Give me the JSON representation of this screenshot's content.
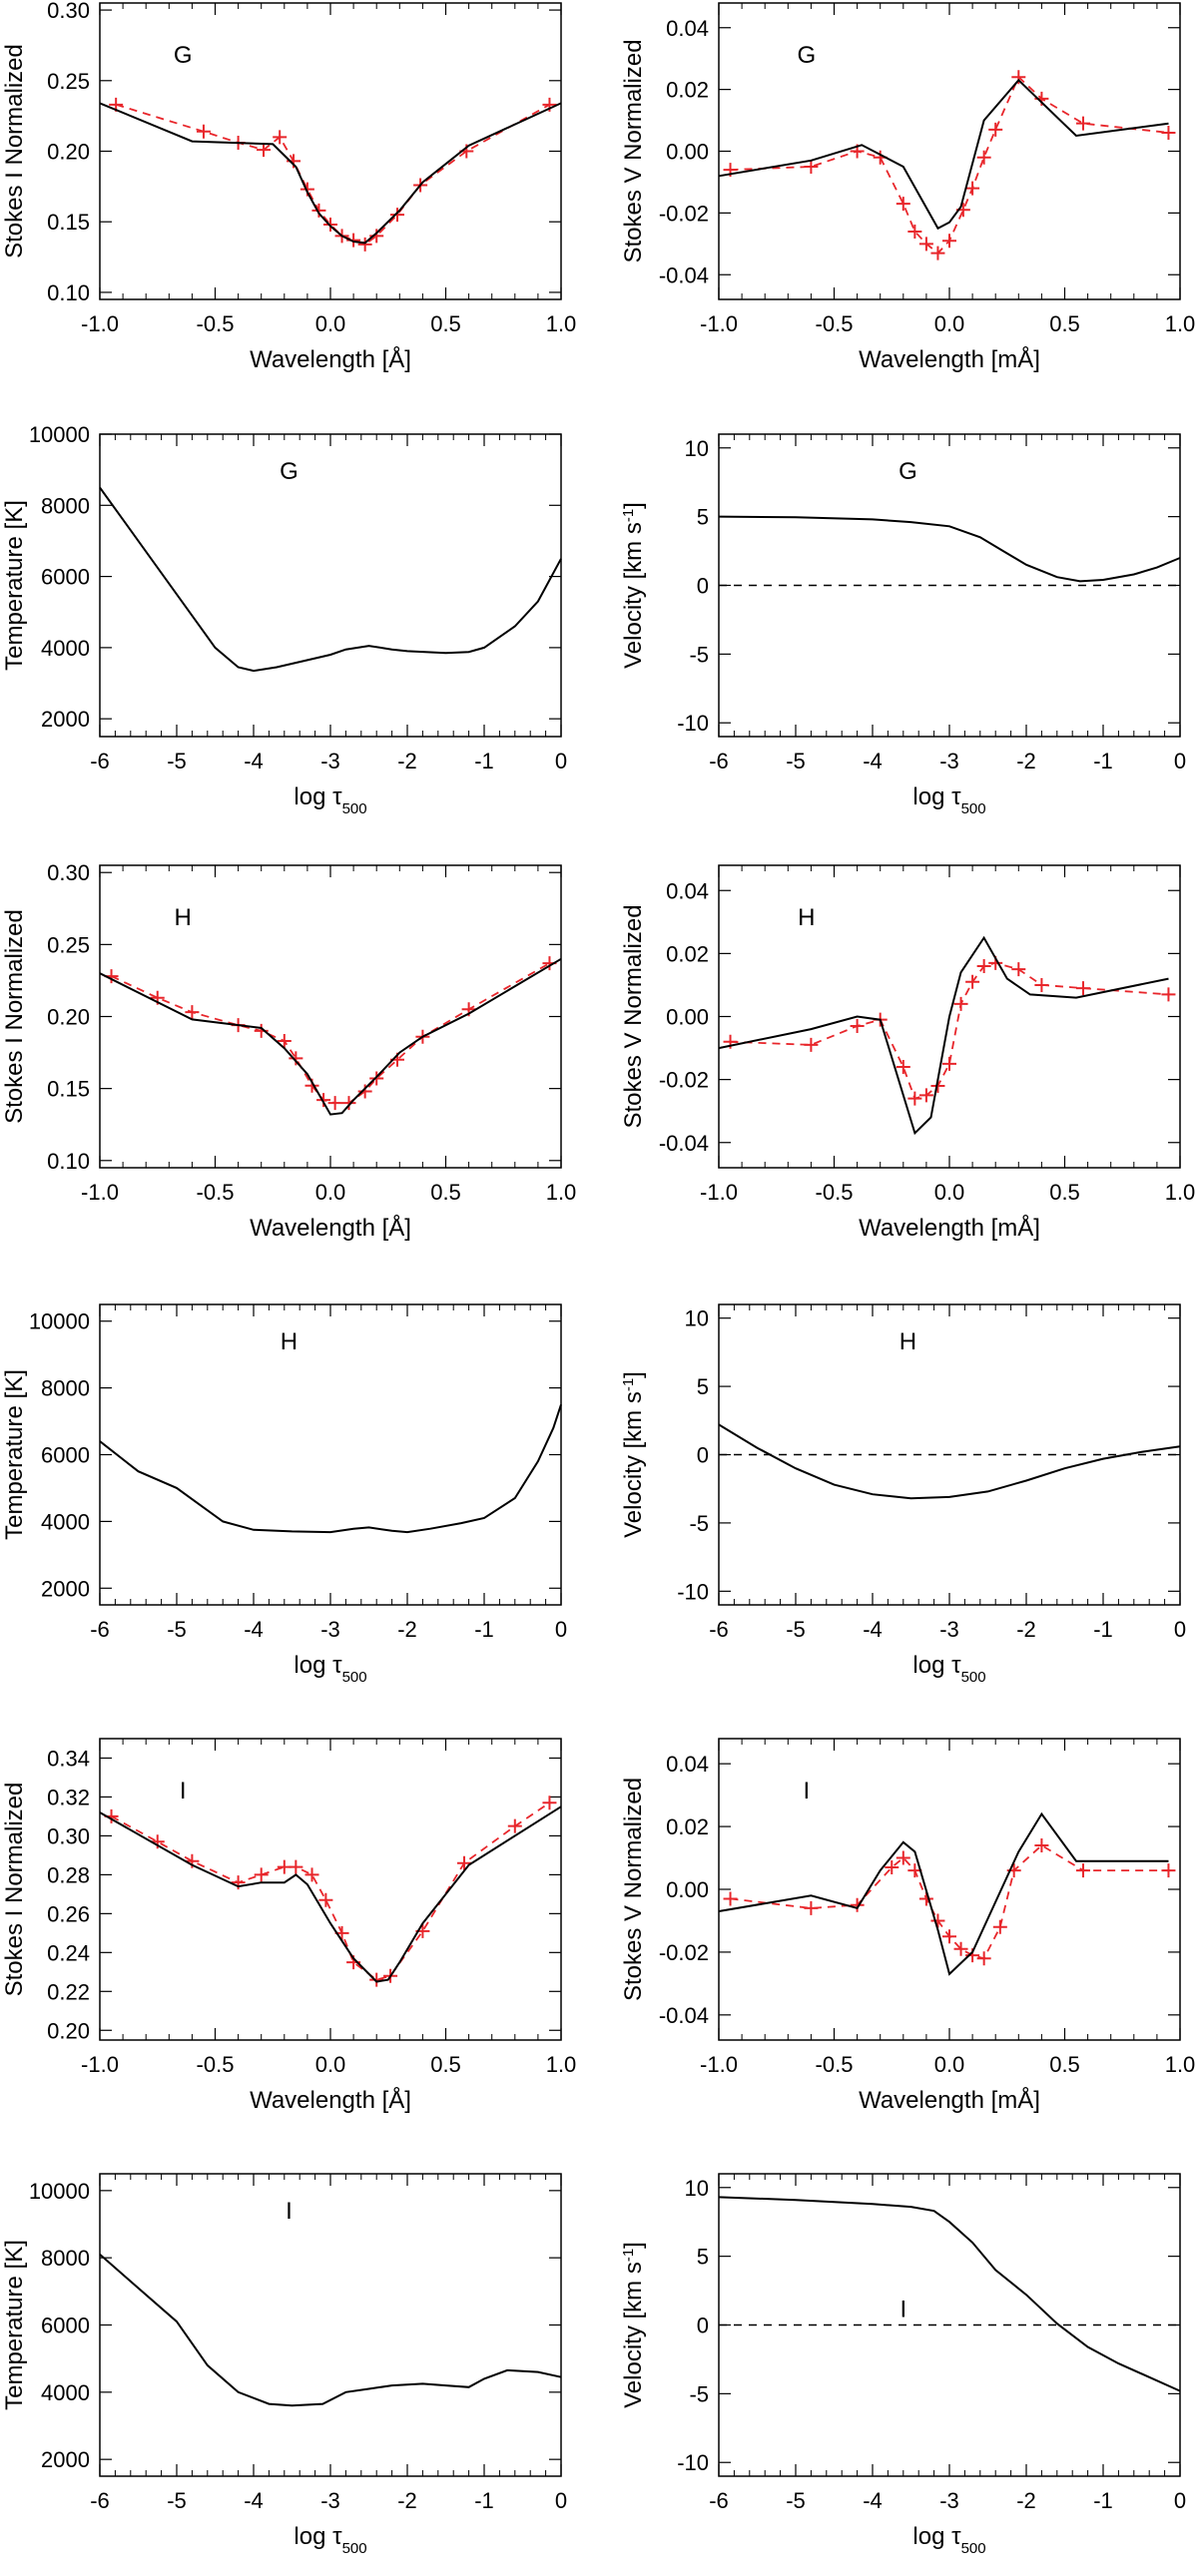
{
  "figure": {
    "colors": {
      "observed": "#e8262b",
      "fit": "#000000"
    }
  },
  "chart_data": [
    {
      "type": "line",
      "kind": "stokesI",
      "panel_label": "G",
      "xlabel": "Wavelength [Å]",
      "ylabel": "Stokes I  Normalized",
      "xlim": [
        -1,
        1
      ],
      "ylim": [
        0.095,
        0.305
      ],
      "xticks": [
        "-1.0",
        "-0.5",
        "0.0",
        "0.5",
        "1.0"
      ],
      "yticks": [
        "0.10",
        "0.15",
        "0.20",
        "0.25",
        "0.30"
      ],
      "series": [
        {
          "name": "observed",
          "style": "dashed-plus",
          "x": [
            -0.93,
            -0.55,
            -0.4,
            -0.29,
            -0.22,
            -0.16,
            -0.1,
            -0.05,
            0.0,
            0.05,
            0.1,
            0.15,
            0.2,
            0.29,
            0.39,
            0.59,
            0.95
          ],
          "y": [
            0.233,
            0.214,
            0.206,
            0.201,
            0.21,
            0.193,
            0.173,
            0.158,
            0.148,
            0.14,
            0.137,
            0.134,
            0.14,
            0.155,
            0.176,
            0.2,
            0.233
          ]
        },
        {
          "name": "fit",
          "style": "solid",
          "x": [
            -1.0,
            -0.6,
            -0.25,
            -0.15,
            -0.1,
            -0.05,
            0.0,
            0.05,
            0.1,
            0.15,
            0.2,
            0.3,
            0.4,
            0.6,
            1.0
          ],
          "y": [
            0.234,
            0.207,
            0.205,
            0.189,
            0.171,
            0.156,
            0.147,
            0.14,
            0.136,
            0.135,
            0.142,
            0.158,
            0.178,
            0.204,
            0.234
          ]
        }
      ]
    },
    {
      "type": "line",
      "kind": "stokesV",
      "panel_label": "G",
      "xlabel": "Wavelength [mÅ]",
      "ylabel": "Stokes V  Normalized",
      "xlim": [
        -1,
        1
      ],
      "ylim": [
        -0.048,
        0.048
      ],
      "xticks": [
        "-1.0",
        "-0.5",
        "0.0",
        "0.5",
        "1.0"
      ],
      "yticks": [
        "-0.04",
        "-0.02",
        "0.00",
        "0.02",
        "0.04"
      ],
      "series": [
        {
          "name": "observed",
          "style": "dashed-plus",
          "x": [
            -0.95,
            -0.6,
            -0.4,
            -0.3,
            -0.2,
            -0.15,
            -0.1,
            -0.05,
            0.0,
            0.06,
            0.1,
            0.15,
            0.2,
            0.3,
            0.4,
            0.58,
            0.95
          ],
          "y": [
            -0.006,
            -0.005,
            0.0,
            -0.002,
            -0.017,
            -0.026,
            -0.03,
            -0.033,
            -0.029,
            -0.019,
            -0.012,
            -0.002,
            0.007,
            0.024,
            0.017,
            0.009,
            0.006
          ]
        },
        {
          "name": "fit",
          "style": "solid",
          "x": [
            -1.0,
            -0.6,
            -0.38,
            -0.2,
            -0.05,
            0.0,
            0.05,
            0.15,
            0.3,
            0.55,
            0.95
          ],
          "y": [
            -0.008,
            -0.003,
            0.002,
            -0.005,
            -0.025,
            -0.023,
            -0.018,
            0.01,
            0.023,
            0.005,
            0.009
          ]
        }
      ]
    },
    {
      "type": "line",
      "kind": "temperature",
      "panel_label": "G",
      "xlabel": "log τ500",
      "ylabel": "Temperature [K]",
      "xlim": [
        -6,
        0
      ],
      "ylim": [
        1500,
        10000
      ],
      "xticks": [
        "-6",
        "-5",
        "-4",
        "-3",
        "-2",
        "-1",
        "0"
      ],
      "yticks": [
        "2000",
        "4000",
        "6000",
        "8000",
        "10000"
      ],
      "series": [
        {
          "name": "fit",
          "style": "solid",
          "x": [
            -6,
            -5.5,
            -5,
            -4.5,
            -4.2,
            -4,
            -3.7,
            -3.3,
            -3,
            -2.8,
            -2.5,
            -2.2,
            -2,
            -1.5,
            -1.2,
            -1,
            -0.6,
            -0.3,
            0
          ],
          "y": [
            8500,
            7000,
            5500,
            4000,
            3450,
            3350,
            3450,
            3650,
            3800,
            3950,
            4050,
            3950,
            3900,
            3850,
            3880,
            4000,
            4600,
            5300,
            6500
          ]
        }
      ]
    },
    {
      "type": "line",
      "kind": "velocity",
      "panel_label": "G",
      "xlabel": "log τ500",
      "ylabel": "Velocity [km s⁻¹]",
      "xlim": [
        -6,
        0
      ],
      "ylim": [
        -11,
        11
      ],
      "xticks": [
        "-6",
        "-5",
        "-4",
        "-3",
        "-2",
        "-1",
        "0"
      ],
      "yticks": [
        "-10",
        "-5",
        "0",
        "5",
        "10"
      ],
      "series": [
        {
          "name": "zero",
          "style": "dashed",
          "x": [
            -6,
            0
          ],
          "y": [
            0,
            0
          ]
        },
        {
          "name": "fit",
          "style": "solid",
          "x": [
            -6,
            -5,
            -4,
            -3.5,
            -3,
            -2.6,
            -2.3,
            -2,
            -1.6,
            -1.3,
            -1,
            -0.6,
            -0.3,
            0
          ],
          "y": [
            5,
            4.95,
            4.8,
            4.6,
            4.3,
            3.5,
            2.5,
            1.5,
            0.6,
            0.3,
            0.4,
            0.8,
            1.3,
            2.0
          ]
        }
      ]
    },
    {
      "type": "line",
      "kind": "stokesI",
      "panel_label": "H",
      "xlabel": "Wavelength [Å]",
      "ylabel": "Stokes I  Normalized",
      "xlim": [
        -1,
        1
      ],
      "ylim": [
        0.095,
        0.305
      ],
      "xticks": [
        "-1.0",
        "-0.5",
        "0.0",
        "0.5",
        "1.0"
      ],
      "yticks": [
        "0.10",
        "0.15",
        "0.20",
        "0.25",
        "0.30"
      ],
      "series": [
        {
          "name": "observed",
          "style": "dashed-plus",
          "x": [
            -0.95,
            -0.75,
            -0.6,
            -0.4,
            -0.3,
            -0.2,
            -0.15,
            -0.08,
            -0.03,
            0.02,
            0.08,
            0.15,
            0.2,
            0.29,
            0.4,
            0.6,
            0.95
          ],
          "y": [
            0.228,
            0.213,
            0.203,
            0.194,
            0.19,
            0.183,
            0.171,
            0.152,
            0.142,
            0.14,
            0.14,
            0.148,
            0.157,
            0.17,
            0.186,
            0.205,
            0.237
          ]
        },
        {
          "name": "fit",
          "style": "solid",
          "x": [
            -1.0,
            -0.6,
            -0.3,
            -0.2,
            -0.1,
            0.0,
            0.05,
            0.1,
            0.2,
            0.3,
            0.4,
            0.6,
            1.0
          ],
          "y": [
            0.23,
            0.198,
            0.192,
            0.178,
            0.16,
            0.132,
            0.133,
            0.142,
            0.158,
            0.175,
            0.186,
            0.202,
            0.24
          ]
        }
      ]
    },
    {
      "type": "line",
      "kind": "stokesV",
      "panel_label": "H",
      "xlabel": "Wavelength [mÅ]",
      "ylabel": "Stokes V  Normalized",
      "xlim": [
        -1,
        1
      ],
      "ylim": [
        -0.048,
        0.048
      ],
      "xticks": [
        "-1.0",
        "-0.5",
        "0.0",
        "0.5",
        "1.0"
      ],
      "yticks": [
        "-0.04",
        "-0.02",
        "0.00",
        "0.02",
        "0.04"
      ],
      "series": [
        {
          "name": "observed",
          "style": "dashed-plus",
          "x": [
            -0.95,
            -0.6,
            -0.4,
            -0.3,
            -0.2,
            -0.15,
            -0.1,
            -0.05,
            0.0,
            0.05,
            0.1,
            0.15,
            0.2,
            0.3,
            0.4,
            0.58,
            0.95
          ],
          "y": [
            -0.008,
            -0.009,
            -0.003,
            -0.001,
            -0.016,
            -0.026,
            -0.025,
            -0.022,
            -0.015,
            0.004,
            0.011,
            0.016,
            0.017,
            0.015,
            0.01,
            0.009,
            0.007
          ]
        },
        {
          "name": "fit",
          "style": "solid",
          "x": [
            -1.0,
            -0.6,
            -0.4,
            -0.3,
            -0.15,
            -0.08,
            0.0,
            0.05,
            0.15,
            0.25,
            0.35,
            0.55,
            0.95
          ],
          "y": [
            -0.01,
            -0.004,
            0.0,
            -0.001,
            -0.037,
            -0.032,
            0.0,
            0.014,
            0.025,
            0.012,
            0.007,
            0.006,
            0.012
          ]
        }
      ]
    },
    {
      "type": "line",
      "kind": "temperature",
      "panel_label": "H",
      "xlabel": "log τ500",
      "ylabel": "Temperature [K]",
      "xlim": [
        -6,
        0
      ],
      "ylim": [
        1500,
        10500
      ],
      "xticks": [
        "-6",
        "-5",
        "-4",
        "-3",
        "-2",
        "-1",
        "0"
      ],
      "yticks": [
        "2000",
        "4000",
        "6000",
        "8000",
        "10000"
      ],
      "series": [
        {
          "name": "fit",
          "style": "solid",
          "x": [
            -6,
            -5.5,
            -5,
            -4.7,
            -4.4,
            -4,
            -3.5,
            -3,
            -2.7,
            -2.5,
            -2.2,
            -2,
            -1.7,
            -1.3,
            -1,
            -0.6,
            -0.3,
            -0.1,
            0
          ],
          "y": [
            6400,
            5500,
            5000,
            4500,
            4000,
            3750,
            3700,
            3680,
            3780,
            3820,
            3720,
            3680,
            3780,
            3950,
            4100,
            4700,
            5800,
            6800,
            7500
          ]
        }
      ]
    },
    {
      "type": "line",
      "kind": "velocity",
      "panel_label": "H",
      "xlabel": "log τ500",
      "ylabel": "Velocity [km s⁻¹]",
      "xlim": [
        -6,
        0
      ],
      "ylim": [
        -11,
        11
      ],
      "xticks": [
        "-6",
        "-5",
        "-4",
        "-3",
        "-2",
        "-1",
        "0"
      ],
      "yticks": [
        "-10",
        "-5",
        "0",
        "5",
        "10"
      ],
      "series": [
        {
          "name": "zero",
          "style": "dashed",
          "x": [
            -6,
            0
          ],
          "y": [
            0,
            0
          ]
        },
        {
          "name": "fit",
          "style": "solid",
          "x": [
            -6,
            -5.5,
            -5,
            -4.5,
            -4,
            -3.5,
            -3,
            -2.5,
            -2,
            -1.5,
            -1,
            -0.5,
            0
          ],
          "y": [
            2.2,
            0.5,
            -1,
            -2.2,
            -2.9,
            -3.2,
            -3.1,
            -2.7,
            -1.9,
            -1,
            -0.3,
            0.2,
            0.6
          ]
        }
      ]
    },
    {
      "type": "line",
      "kind": "stokesI",
      "panel_label": "I",
      "xlabel": "Wavelength [Å]",
      "ylabel": "Stokes I  Normalized",
      "xlim": [
        -1,
        1
      ],
      "ylim": [
        0.195,
        0.35
      ],
      "xticks": [
        "-1.0",
        "-0.5",
        "0.0",
        "0.5",
        "1.0"
      ],
      "yticks": [
        "0.20",
        "0.22",
        "0.24",
        "0.26",
        "0.28",
        "0.30",
        "0.32",
        "0.34"
      ],
      "series": [
        {
          "name": "observed",
          "style": "dashed-plus",
          "x": [
            -0.95,
            -0.75,
            -0.6,
            -0.4,
            -0.3,
            -0.2,
            -0.15,
            -0.08,
            -0.02,
            0.05,
            0.1,
            0.2,
            0.26,
            0.4,
            0.58,
            0.8,
            0.95
          ],
          "y": [
            0.31,
            0.297,
            0.287,
            0.276,
            0.28,
            0.284,
            0.284,
            0.28,
            0.267,
            0.25,
            0.235,
            0.226,
            0.228,
            0.251,
            0.286,
            0.305,
            0.317
          ]
        },
        {
          "name": "fit",
          "style": "solid",
          "x": [
            -1.0,
            -0.6,
            -0.4,
            -0.3,
            -0.2,
            -0.15,
            -0.1,
            0.0,
            0.1,
            0.2,
            0.25,
            0.3,
            0.4,
            0.6,
            1.0
          ],
          "y": [
            0.312,
            0.285,
            0.274,
            0.276,
            0.276,
            0.28,
            0.275,
            0.255,
            0.237,
            0.225,
            0.226,
            0.235,
            0.255,
            0.285,
            0.315
          ]
        }
      ]
    },
    {
      "type": "line",
      "kind": "stokesV",
      "panel_label": "I",
      "xlabel": "Wavelength [mÅ]",
      "ylabel": "Stokes V  Normalized",
      "xlim": [
        -1,
        1
      ],
      "ylim": [
        -0.048,
        0.048
      ],
      "xticks": [
        "-1.0",
        "-0.5",
        "0.0",
        "0.5",
        "1.0"
      ],
      "yticks": [
        "-0.04",
        "-0.02",
        "0.00",
        "0.02",
        "0.04"
      ],
      "series": [
        {
          "name": "observed",
          "style": "dashed-plus",
          "x": [
            -0.95,
            -0.6,
            -0.4,
            -0.25,
            -0.2,
            -0.15,
            -0.1,
            -0.05,
            0.0,
            0.05,
            0.1,
            0.15,
            0.22,
            0.28,
            0.4,
            0.58,
            0.95
          ],
          "y": [
            -0.003,
            -0.006,
            -0.005,
            0.007,
            0.01,
            0.006,
            -0.003,
            -0.01,
            -0.015,
            -0.019,
            -0.021,
            -0.022,
            -0.012,
            0.006,
            0.014,
            0.006,
            0.006
          ]
        },
        {
          "name": "fit",
          "style": "solid",
          "x": [
            -1.0,
            -0.6,
            -0.4,
            -0.3,
            -0.2,
            -0.15,
            -0.05,
            0.0,
            0.1,
            0.3,
            0.4,
            0.55,
            0.95
          ],
          "y": [
            -0.007,
            -0.002,
            -0.006,
            0.006,
            0.015,
            0.012,
            -0.013,
            -0.027,
            -0.02,
            0.012,
            0.024,
            0.009,
            0.009
          ]
        }
      ]
    },
    {
      "type": "line",
      "kind": "temperature",
      "panel_label": "I",
      "xlabel": "log τ500",
      "ylabel": "Temperature [K]",
      "xlim": [
        -6,
        0
      ],
      "ylim": [
        1500,
        10500
      ],
      "xticks": [
        "-6",
        "-5",
        "-4",
        "-3",
        "-2",
        "-1",
        "0"
      ],
      "yticks": [
        "2000",
        "4000",
        "6000",
        "8000",
        "10000"
      ],
      "series": [
        {
          "name": "fit",
          "style": "solid",
          "x": [
            -6,
            -5.5,
            -5,
            -4.6,
            -4.2,
            -3.8,
            -3.5,
            -3.1,
            -2.8,
            -2.5,
            -2.2,
            -1.8,
            -1.5,
            -1.2,
            -1,
            -0.7,
            -0.3,
            0
          ],
          "y": [
            8100,
            7100,
            6100,
            4800,
            4000,
            3650,
            3600,
            3650,
            4000,
            4100,
            4200,
            4250,
            4200,
            4150,
            4400,
            4650,
            4600,
            4450
          ]
        }
      ]
    },
    {
      "type": "line",
      "kind": "velocity",
      "panel_label": "I",
      "xlabel": "log τ500",
      "ylabel": "Velocity [km s⁻¹]",
      "xlim": [
        -6,
        0
      ],
      "ylim": [
        -11,
        11
      ],
      "xticks": [
        "-6",
        "-5",
        "-4",
        "-3",
        "-2",
        "-1",
        "0"
      ],
      "yticks": [
        "-10",
        "-5",
        "0",
        "5",
        "10"
      ],
      "series": [
        {
          "name": "zero",
          "style": "dashed",
          "x": [
            -6,
            0
          ],
          "y": [
            0,
            0
          ]
        },
        {
          "name": "fit",
          "style": "solid",
          "x": [
            -6,
            -5,
            -4,
            -3.5,
            -3.2,
            -3,
            -2.7,
            -2.4,
            -2,
            -1.6,
            -1.2,
            -0.8,
            -0.4,
            0
          ],
          "y": [
            9.3,
            9.1,
            8.8,
            8.6,
            8.3,
            7.5,
            6,
            4,
            2.2,
            0.1,
            -1.6,
            -2.8,
            -3.8,
            -4.8
          ]
        }
      ]
    }
  ]
}
